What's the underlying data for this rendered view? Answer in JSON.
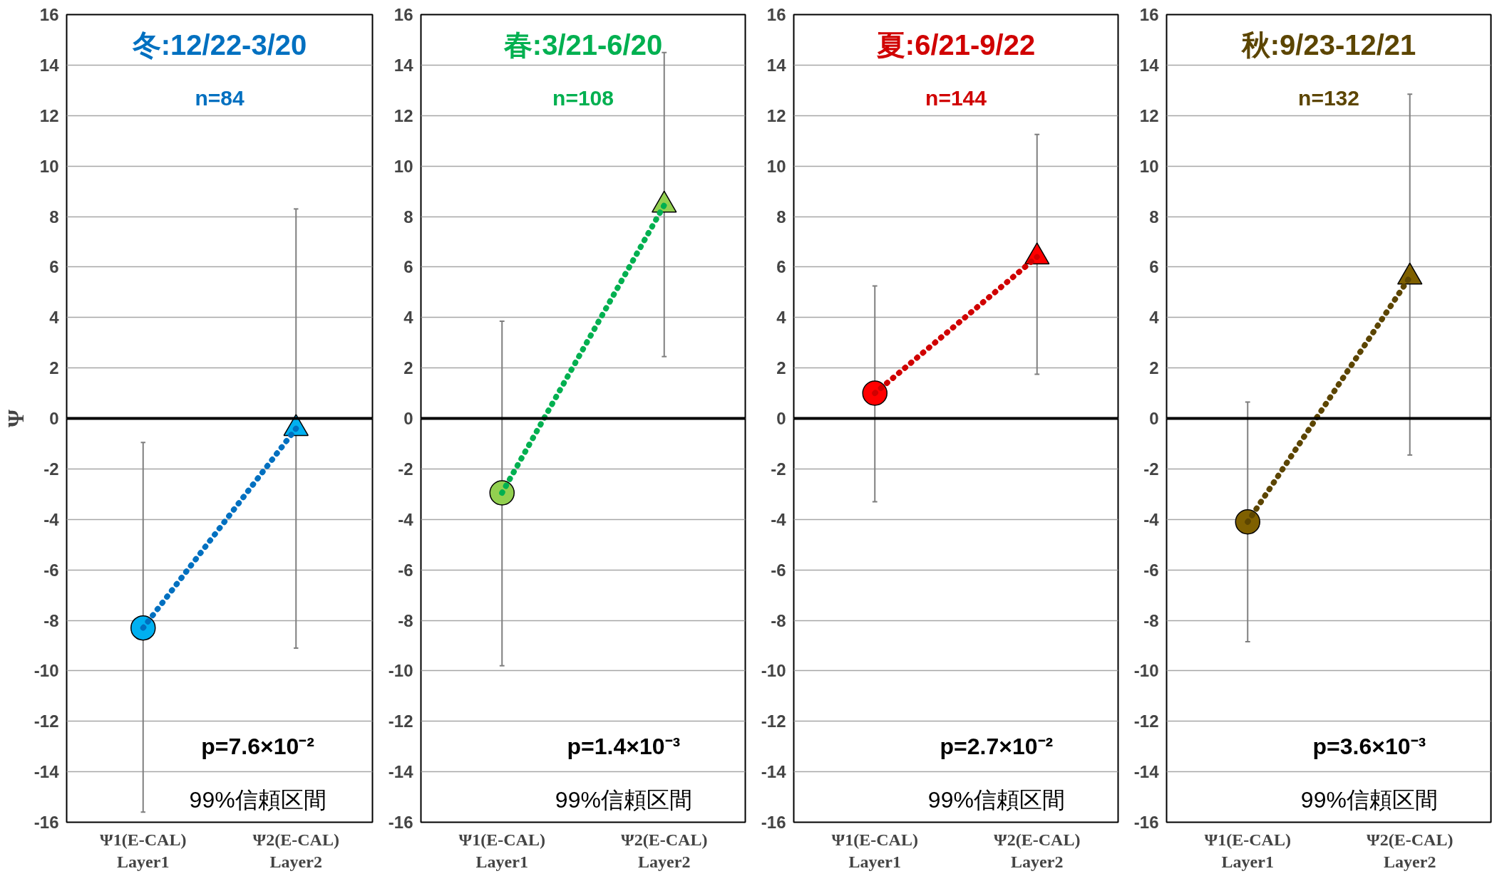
{
  "chart_data": [
    {
      "type": "line",
      "title": "冬:12/22-3/20",
      "subtitle": "n=84",
      "ylabel": "Ψ",
      "categories": [
        "Ψ1(E-CAL)\nLayer1",
        "Ψ2(E-CAL)\nLayer2"
      ],
      "ylim": [
        -16,
        16
      ],
      "yticks": [
        -16,
        -14,
        -12,
        -10,
        -8,
        -6,
        -4,
        -2,
        0,
        2,
        4,
        6,
        8,
        10,
        12,
        14,
        16
      ],
      "grid": "y",
      "annotations": [
        "p=7.6×10⁻²",
        "99%信頼区間"
      ],
      "ref_lines": [
        {
          "axis": "y",
          "value": 0,
          "color": "#000000"
        }
      ],
      "series": [
        {
          "color": "#0070c0",
          "colors": [
            "#00b0f0",
            "#00b0f0"
          ],
          "line_style": "dotted",
          "marker": [
            "circle",
            "triangle"
          ],
          "values": [
            -8.3,
            -0.4
          ],
          "errors": [
            [
              -15.6,
              -0.95
            ],
            [
              -9.1,
              8.3
            ]
          ]
        }
      ]
    },
    {
      "type": "line",
      "title": "春:3/21-6/20",
      "subtitle": "n=108",
      "categories": [
        "Ψ1(E-CAL)\nLayer1",
        "Ψ2(E-CAL)\nLayer2"
      ],
      "ylim": [
        -16,
        16
      ],
      "yticks": [
        -16,
        -14,
        -12,
        -10,
        -8,
        -6,
        -4,
        -2,
        0,
        2,
        4,
        6,
        8,
        10,
        12,
        14,
        16
      ],
      "grid": "y",
      "annotations": [
        "p=1.4×10⁻³",
        "99%信頼区間"
      ],
      "ref_lines": [
        {
          "axis": "y",
          "value": 0,
          "color": "#000000"
        }
      ],
      "series": [
        {
          "color": "#00b050",
          "colors": [
            "#92d050",
            "#92d050"
          ],
          "line_style": "dotted",
          "marker": [
            "circle",
            "triangle"
          ],
          "values": [
            -2.95,
            8.45
          ],
          "errors": [
            [
              -9.8,
              3.85
            ],
            [
              2.45,
              14.5
            ]
          ]
        }
      ]
    },
    {
      "type": "line",
      "title": "夏:6/21-9/22",
      "subtitle": "n=144",
      "categories": [
        "Ψ1(E-CAL)\nLayer1",
        "Ψ2(E-CAL)\nLayer2"
      ],
      "ylim": [
        -16,
        16
      ],
      "yticks": [
        -16,
        -14,
        -12,
        -10,
        -8,
        -6,
        -4,
        -2,
        0,
        2,
        4,
        6,
        8,
        10,
        12,
        14,
        16
      ],
      "grid": "y",
      "annotations": [
        "p=2.7×10⁻²",
        "99%信頼区間"
      ],
      "ref_lines": [
        {
          "axis": "y",
          "value": 0,
          "color": "#000000"
        }
      ],
      "series": [
        {
          "color": "#d00000",
          "colors": [
            "#ff0000",
            "#ff0000"
          ],
          "line_style": "dotted",
          "marker": [
            "circle",
            "triangle"
          ],
          "values": [
            1.0,
            6.4
          ],
          "errors": [
            [
              -3.3,
              5.25
            ],
            [
              1.75,
              11.25
            ]
          ]
        }
      ]
    },
    {
      "type": "line",
      "title": "秋:9/23-12/21",
      "subtitle": "n=132",
      "categories": [
        "Ψ1(E-CAL)\nLayer1",
        "Ψ2(E-CAL)\nLayer2"
      ],
      "ylim": [
        -16,
        16
      ],
      "yticks": [
        -16,
        -14,
        -12,
        -10,
        -8,
        -6,
        -4,
        -2,
        0,
        2,
        4,
        6,
        8,
        10,
        12,
        14,
        16
      ],
      "grid": "y",
      "annotations": [
        "p=3.6×10⁻³",
        "99%信頼区間"
      ],
      "ref_lines": [
        {
          "axis": "y",
          "value": 0,
          "color": "#000000"
        }
      ],
      "series": [
        {
          "color": "#5c4500",
          "colors": [
            "#7f6000",
            "#7f6000"
          ],
          "line_style": "dotted",
          "marker": [
            "circle",
            "triangle"
          ],
          "values": [
            -4.1,
            5.6
          ],
          "errors": [
            [
              -8.85,
              0.65
            ],
            [
              -1.45,
              12.85
            ]
          ]
        }
      ]
    }
  ]
}
